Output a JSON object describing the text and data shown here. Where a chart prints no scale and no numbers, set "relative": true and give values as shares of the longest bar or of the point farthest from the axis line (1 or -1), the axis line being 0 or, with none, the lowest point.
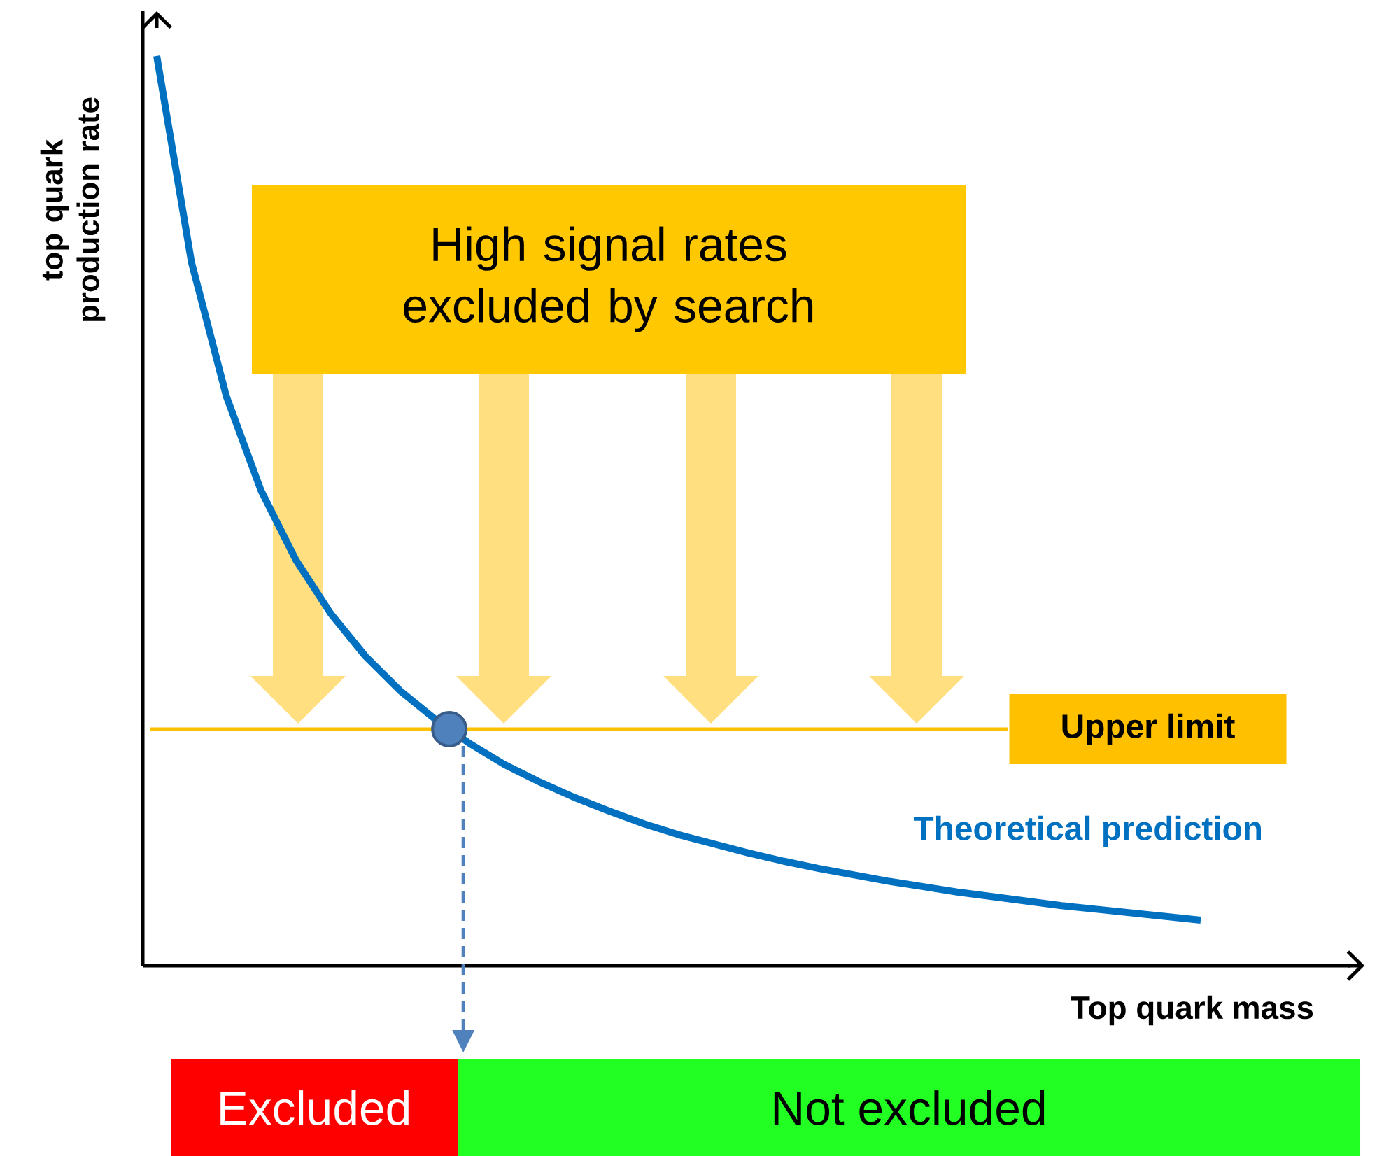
{
  "chart_data": {
    "type": "line",
    "relative": true,
    "xlabel": "Top quark mass",
    "ylabel": "top quark production rate",
    "categories": [
      null,
      null,
      null,
      null,
      null,
      null,
      null,
      null,
      null,
      null,
      null,
      null,
      null,
      null,
      null,
      null,
      null,
      null,
      null,
      null,
      null,
      null,
      null,
      null,
      null,
      null,
      null,
      null,
      null,
      null,
      null
    ],
    "series": [
      {
        "name": "Theoretical prediction",
        "color": "#0070c0",
        "values": [
          1.0,
          0.773,
          0.626,
          0.522,
          0.446,
          0.387,
          0.34,
          0.302,
          0.271,
          0.244,
          0.221,
          0.202,
          0.185,
          0.17,
          0.156,
          0.144,
          0.134,
          0.124,
          0.115,
          0.107,
          0.1,
          0.093,
          0.087,
          0.081,
          0.076,
          0.071,
          0.066,
          0.062,
          0.058,
          0.054,
          0.05
        ]
      }
    ],
    "ref_lines": [
      {
        "axis": "y",
        "value": 0.26,
        "label": "Upper limit",
        "color": "#ffc000"
      }
    ],
    "annotations": [
      "High signal rates excluded by search",
      "Excluded",
      "Not excluded"
    ]
  }
}
